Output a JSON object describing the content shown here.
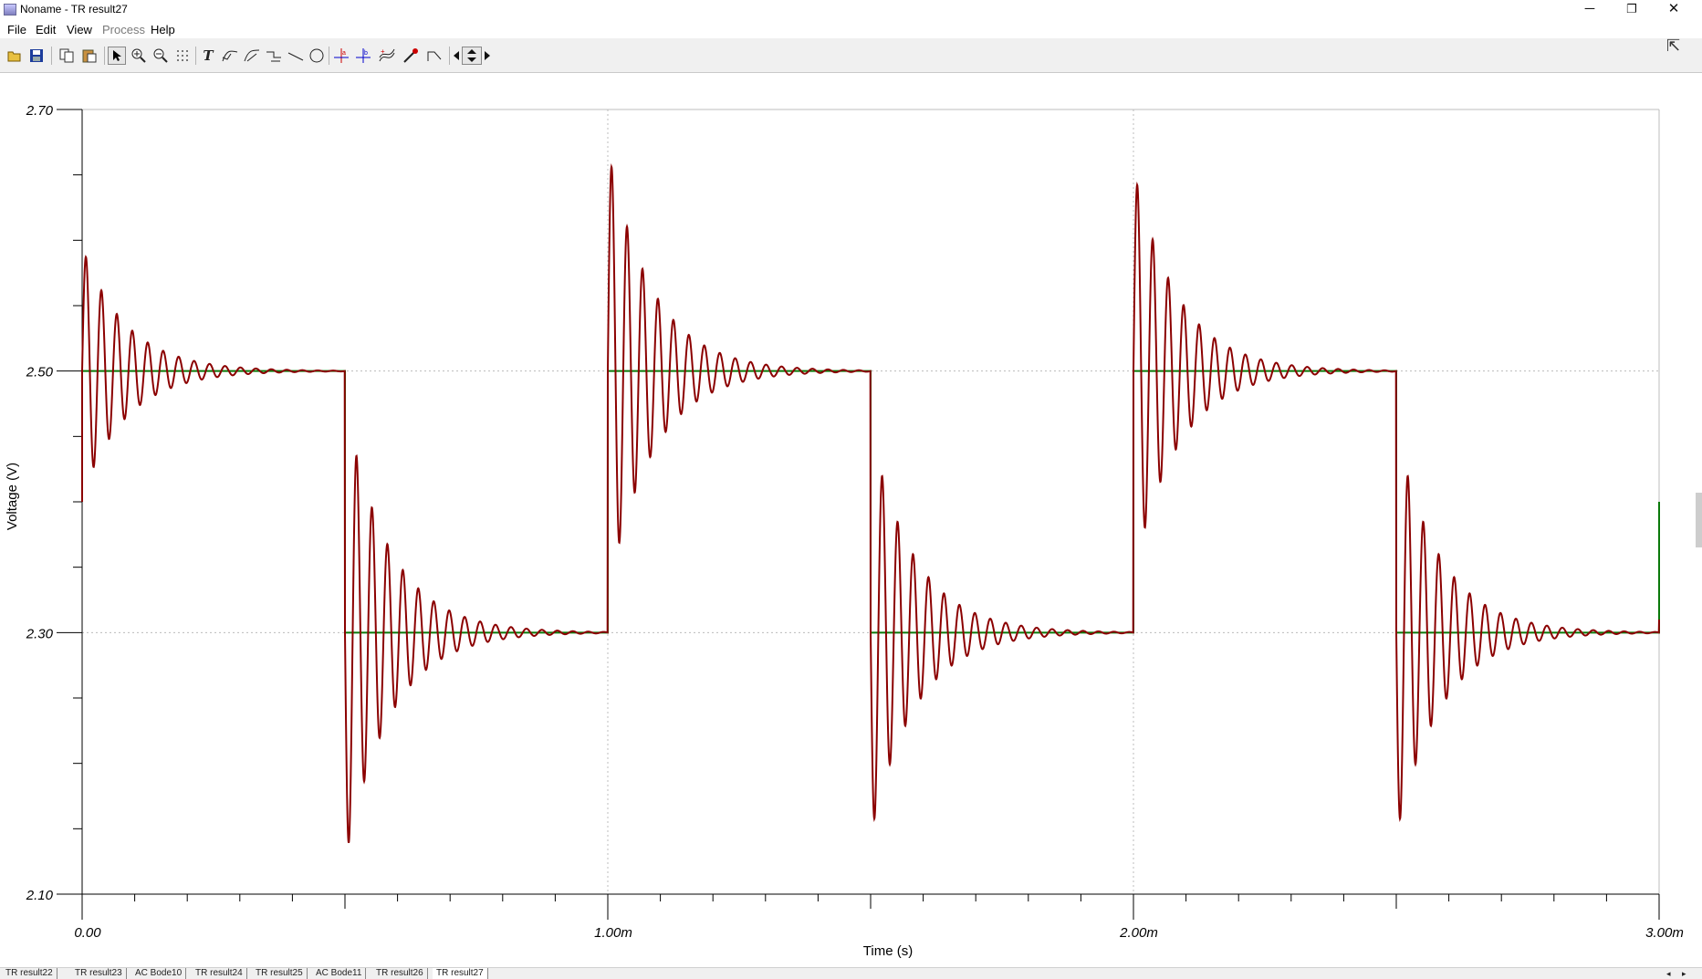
{
  "window": {
    "title": "Noname - TR result27"
  },
  "window_controls": {
    "minimize": "─",
    "restore": "❐",
    "close": "✕"
  },
  "menu": {
    "file": "File",
    "edit": "Edit",
    "view": "View",
    "process": "Process",
    "help": "Help"
  },
  "toolbar": {
    "icons": [
      "open-icon",
      "save-icon",
      "copy-icon",
      "paste-icon",
      "pointer-icon",
      "zoom-in-icon",
      "zoom-out-icon",
      "grid-icon",
      "text-icon",
      "curve-tool-icon",
      "curve-tool-2-icon",
      "curve-tool-3-icon",
      "line-icon",
      "circle-icon",
      "cursor-a-icon",
      "cursor-b-icon",
      "add-curve-icon",
      "probe-icon",
      "step-icon",
      "scroll-left-icon",
      "scroll-updown-icon",
      "scroll-right-icon"
    ],
    "text_tool_label": "T"
  },
  "tabs": [
    "TR result22",
    "TR result23",
    "AC Bode10",
    "TR result24",
    "TR result25",
    "AC Bode11",
    "TR result26",
    "TR result27"
  ],
  "active_tab_index": 7,
  "chart_data": {
    "type": "line",
    "xlabel": "Time (s)",
    "ylabel": "Voltage (V)",
    "xlim": [
      0,
      0.003
    ],
    "ylim": [
      2.1,
      2.7
    ],
    "x_tick_labels": [
      "0.00",
      "1.00m",
      "2.00m",
      "3.00m"
    ],
    "x_ticks": [
      0,
      0.001,
      0.002,
      0.003
    ],
    "y_tick_labels": [
      "2.10",
      "2.30",
      "2.50",
      "2.70"
    ],
    "y_ticks": [
      2.1,
      2.3,
      2.5,
      2.7
    ],
    "grid": true,
    "colors": {
      "square": "#0a7a0a",
      "ringing": "#8b0000",
      "grid": "#bcbcbc"
    },
    "series": [
      {
        "color": "#0a7a0a",
        "x": [
          0,
          0,
          0.0005,
          0.0005,
          0.001,
          0.001,
          0.0015,
          0.0015,
          0.002,
          0.002,
          0.0025,
          0.0025,
          0.003,
          0.003
        ],
        "y": [
          2.4,
          2.5,
          2.5,
          2.3,
          2.3,
          2.5,
          2.5,
          2.3,
          2.3,
          2.5,
          2.5,
          2.3,
          2.3,
          2.4
        ]
      },
      {
        "color": "#8b0000",
        "oscillation_period": 2.94e-05,
        "decay_time_constant": 8.5e-05,
        "edges": [
          {
            "t": 0.0,
            "to": 2.5,
            "overshoot": 0.095
          },
          {
            "t": 0.0005,
            "to": 2.3,
            "overshoot": -0.175
          },
          {
            "t": 0.001,
            "to": 2.5,
            "overshoot": 0.17
          },
          {
            "t": 0.0015,
            "to": 2.3,
            "overshoot": -0.155
          },
          {
            "t": 0.002,
            "to": 2.5,
            "overshoot": 0.155
          },
          {
            "t": 0.0025,
            "to": 2.3,
            "overshoot": -0.155
          }
        ],
        "initial_value": 2.4,
        "end_value": 2.31
      }
    ]
  }
}
